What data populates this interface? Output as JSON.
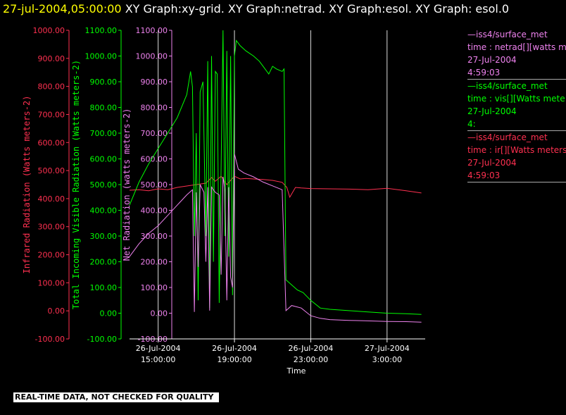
{
  "header": {
    "timestamp": "27-jul-2004,05:00:00",
    "text": "  XY Graph:xy-grid.  XY Graph:netrad.  XY Graph:esol.  XY Graph: esol.0"
  },
  "legend": [
    {
      "line1": "iss4/surface_met",
      "line2": "time : netrad[][watts m",
      "line3": "27-Jul-2004",
      "line4": "4:59:03",
      "color": "#ee82ee"
    },
    {
      "line1": "iss4/surface_met",
      "line2": "time : vis[][Watts mete",
      "line3": "27-Jul-2004",
      "line4": "4:",
      "color": "#00ff00"
    },
    {
      "line1": "iss4/surface_met",
      "line2": "time : ir[][Watts meters",
      "line3": "27-Jul-2004",
      "line4": "4:59:03",
      "color": "#ff3050"
    }
  ],
  "disclaimer": "REAL-TIME DATA, NOT CHECKED FOR QUALITY",
  "chart_data": {
    "type": "line",
    "xlabel": "Time",
    "x_ticks": [
      {
        "t": 15,
        "line1": "26-Jul-2004",
        "line2": "15:00:00"
      },
      {
        "t": 19,
        "line1": "26-Jul-2004",
        "line2": "19:00:00"
      },
      {
        "t": 23,
        "line1": "26-Jul-2004",
        "line2": "23:00:00"
      },
      {
        "t": 27,
        "line1": "27-Jul-2004",
        "line2": "3:00:00"
      }
    ],
    "xlim_hours_since_midnight_26jul": [
      13.5,
      29.0
    ],
    "vertical_gridlines_hours": [
      15,
      19,
      23,
      27
    ],
    "y_axes": [
      {
        "label": "Infrared Radiation (Watts meters-2)",
        "color": "#ff3050",
        "ticks": [
          "1000.00",
          "900.00",
          "800.00",
          "700.00",
          "600.00",
          "500.00",
          "400.00",
          "300.00",
          "200.00",
          "100.00",
          "0.00",
          "-100.00"
        ],
        "ylim": [
          -100,
          1000
        ]
      },
      {
        "label": "Total Incoming Visible Radiation (Watts meters-2)",
        "color": "#00ff00",
        "ticks": [
          "1100.00",
          "1000.00",
          "900.00",
          "800.00",
          "700.00",
          "600.00",
          "500.00",
          "400.00",
          "300.00",
          "200.00",
          "100.00",
          "0.00",
          "-100.00"
        ],
        "ylim": [
          -100,
          1100
        ]
      },
      {
        "label": "Net Radiation (watts meters-2)",
        "color": "#ee82ee",
        "ticks": [
          "1100.00",
          "1000.00",
          "900.00",
          "800.00",
          "700.00",
          "600.00",
          "500.00",
          "400.00",
          "300.00",
          "200.00",
          "100.00",
          "0.00",
          "-100.00"
        ],
        "ylim": [
          -100,
          1100
        ]
      }
    ],
    "series": [
      {
        "name": "ir",
        "color": "#ff3050",
        "points": [
          [
            13.5,
            430
          ],
          [
            14.0,
            432
          ],
          [
            14.5,
            428
          ],
          [
            15.0,
            435
          ],
          [
            15.5,
            432
          ],
          [
            16.0,
            440
          ],
          [
            16.5,
            445
          ],
          [
            17.0,
            450
          ],
          [
            17.5,
            455
          ],
          [
            17.8,
            475
          ],
          [
            18.0,
            462
          ],
          [
            18.3,
            480
          ],
          [
            18.6,
            450
          ],
          [
            19.0,
            480
          ],
          [
            19.3,
            470
          ],
          [
            19.6,
            472
          ],
          [
            20.0,
            470
          ],
          [
            20.5,
            468
          ],
          [
            21.0,
            465
          ],
          [
            21.5,
            458
          ],
          [
            21.75,
            440
          ],
          [
            21.9,
            405
          ],
          [
            22.2,
            440
          ],
          [
            22.5,
            438
          ],
          [
            23.0,
            436
          ],
          [
            24.0,
            435
          ],
          [
            25.0,
            434
          ],
          [
            26.0,
            432
          ],
          [
            27.0,
            437
          ],
          [
            28.0,
            428
          ],
          [
            28.8,
            420
          ]
        ]
      },
      {
        "name": "vis",
        "color": "#00ff00",
        "points": [
          [
            13.5,
            420
          ],
          [
            14.0,
            510
          ],
          [
            14.5,
            580
          ],
          [
            15.0,
            640
          ],
          [
            15.5,
            700
          ],
          [
            16.0,
            760
          ],
          [
            16.5,
            850
          ],
          [
            16.7,
            940
          ],
          [
            16.8,
            880
          ],
          [
            16.9,
            300
          ],
          [
            17.0,
            700
          ],
          [
            17.1,
            50
          ],
          [
            17.2,
            860
          ],
          [
            17.35,
            900
          ],
          [
            17.5,
            300
          ],
          [
            17.6,
            980
          ],
          [
            17.7,
            20
          ],
          [
            17.8,
            1000
          ],
          [
            17.9,
            200
          ],
          [
            18.0,
            940
          ],
          [
            18.1,
            930
          ],
          [
            18.2,
            40
          ],
          [
            18.4,
            1100
          ],
          [
            18.5,
            300
          ],
          [
            18.6,
            1020
          ],
          [
            18.7,
            220
          ],
          [
            18.8,
            1000
          ],
          [
            18.9,
            70
          ],
          [
            19.0,
            1000
          ],
          [
            19.1,
            1060
          ],
          [
            19.3,
            1040
          ],
          [
            19.6,
            1020
          ],
          [
            20.0,
            1000
          ],
          [
            20.3,
            980
          ],
          [
            20.5,
            960
          ],
          [
            20.8,
            930
          ],
          [
            21.0,
            960
          ],
          [
            21.2,
            950
          ],
          [
            21.5,
            940
          ],
          [
            21.6,
            950
          ],
          [
            21.7,
            130
          ],
          [
            22.0,
            110
          ],
          [
            22.3,
            90
          ],
          [
            22.6,
            80
          ],
          [
            23.0,
            50
          ],
          [
            23.5,
            20
          ],
          [
            24.0,
            15
          ],
          [
            25.0,
            10
          ],
          [
            26.0,
            5
          ],
          [
            27.0,
            0
          ],
          [
            28.0,
            -2
          ],
          [
            28.8,
            -5
          ]
        ]
      },
      {
        "name": "netrad",
        "color": "#ee82ee",
        "points": [
          [
            13.5,
            220
          ],
          [
            14.0,
            270
          ],
          [
            14.5,
            310
          ],
          [
            15.0,
            340
          ],
          [
            15.5,
            380
          ],
          [
            16.0,
            420
          ],
          [
            16.5,
            460
          ],
          [
            16.8,
            480
          ],
          [
            16.9,
            5
          ],
          [
            17.0,
            470
          ],
          [
            17.1,
            180
          ],
          [
            17.2,
            500
          ],
          [
            17.4,
            470
          ],
          [
            17.5,
            200
          ],
          [
            17.6,
            490
          ],
          [
            17.7,
            10
          ],
          [
            17.8,
            490
          ],
          [
            18.0,
            470
          ],
          [
            18.2,
            460
          ],
          [
            18.3,
            150
          ],
          [
            18.4,
            530
          ],
          [
            18.5,
            480
          ],
          [
            18.6,
            50
          ],
          [
            18.7,
            490
          ],
          [
            18.8,
            140
          ],
          [
            18.9,
            100
          ],
          [
            19.0,
            620
          ],
          [
            19.2,
            560
          ],
          [
            19.5,
            545
          ],
          [
            20.0,
            530
          ],
          [
            20.5,
            510
          ],
          [
            21.0,
            495
          ],
          [
            21.5,
            480
          ],
          [
            21.7,
            10
          ],
          [
            22.0,
            30
          ],
          [
            22.5,
            20
          ],
          [
            23.0,
            -10
          ],
          [
            23.5,
            -20
          ],
          [
            24.0,
            -25
          ],
          [
            25.0,
            -28
          ],
          [
            26.0,
            -30
          ],
          [
            27.0,
            -32
          ],
          [
            28.0,
            -33
          ],
          [
            28.8,
            -35
          ]
        ]
      }
    ]
  }
}
